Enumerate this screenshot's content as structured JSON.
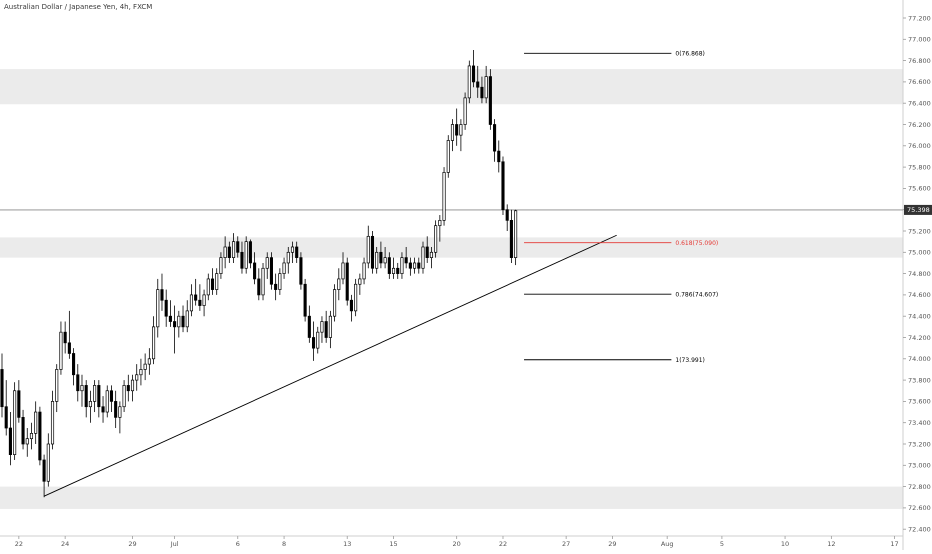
{
  "header": {
    "title": "Australian Dollar / Japanese Yen, 4h, FXCM"
  },
  "colors": {
    "candle": "#000000",
    "zone": "#ebebeb",
    "fib_line": "#000000",
    "fib_golden": "#e53935",
    "trendline": "#000000",
    "price_line": "#888888",
    "price_badge_bg": "#333333",
    "axis_text": "#555555"
  },
  "chart_data": {
    "type": "candlestick",
    "symbol": "AUDJPY",
    "interval": "4h",
    "y_ticks": [
      "72.400",
      "72.600",
      "72.800",
      "73.000",
      "73.200",
      "73.400",
      "73.600",
      "73.800",
      "74.000",
      "74.200",
      "74.400",
      "74.600",
      "74.800",
      "75.000",
      "75.200",
      "75.400",
      "75.600",
      "75.800",
      "76.000",
      "76.200",
      "76.400",
      "76.600",
      "76.800",
      "77.000",
      "77.200"
    ],
    "y_tick_values": [
      72.4,
      72.6,
      72.8,
      73.0,
      73.2,
      73.4,
      73.6,
      73.8,
      74.0,
      74.2,
      74.4,
      74.6,
      74.8,
      75.0,
      75.2,
      75.4,
      75.6,
      75.8,
      76.0,
      76.2,
      76.4,
      76.6,
      76.8,
      77.0,
      77.2
    ],
    "x_ticks": [
      {
        "label": "22",
        "bar": 4
      },
      {
        "label": "24",
        "bar": 15
      },
      {
        "label": "29",
        "bar": 31
      },
      {
        "label": "Jul",
        "bar": 41
      },
      {
        "label": "6",
        "bar": 56
      },
      {
        "label": "8",
        "bar": 67
      },
      {
        "label": "13",
        "bar": 82
      },
      {
        "label": "15",
        "bar": 93
      },
      {
        "label": "20",
        "bar": 108
      },
      {
        "label": "22",
        "bar": 119
      },
      {
        "label": "27",
        "bar": 134
      },
      {
        "label": "29",
        "bar": 145
      },
      {
        "label": "Aug",
        "bar": 158
      },
      {
        "label": "5",
        "bar": 171
      },
      {
        "label": "10",
        "bar": 186
      },
      {
        "label": "12",
        "bar": 197
      },
      {
        "label": "17",
        "bar": 212
      }
    ],
    "current_price": {
      "label": "75.398",
      "value": 75.398
    },
    "zones": [
      {
        "from": 76.39,
        "to": 76.72
      },
      {
        "from": 74.95,
        "to": 75.14
      },
      {
        "from": 72.59,
        "to": 72.8
      }
    ],
    "fib_levels": [
      {
        "label": "0(76.868)",
        "value": 76.868,
        "golden": false
      },
      {
        "label": "0.618(75.090)",
        "value": 75.09,
        "golden": true
      },
      {
        "label": "0.786(74.607)",
        "value": 74.607,
        "golden": false
      },
      {
        "label": "1(73.991)",
        "value": 73.991,
        "golden": false
      }
    ],
    "fib_start_bar": 124,
    "fib_end_bar": 159,
    "trendline": {
      "bar1": 10,
      "price1": 72.71,
      "bar2": 146,
      "price2": 75.16
    },
    "candles": [
      [
        73.9,
        74.05,
        73.45,
        73.55
      ],
      [
        73.55,
        73.8,
        73.28,
        73.35
      ],
      [
        73.35,
        73.5,
        73.0,
        73.1
      ],
      [
        73.1,
        73.78,
        73.05,
        73.7
      ],
      [
        73.7,
        73.8,
        73.4,
        73.45
      ],
      [
        73.45,
        73.52,
        73.15,
        73.2
      ],
      [
        73.2,
        73.35,
        73.08,
        73.25
      ],
      [
        73.25,
        73.4,
        73.15,
        73.3
      ],
      [
        73.3,
        73.6,
        73.2,
        73.5
      ],
      [
        73.5,
        73.55,
        73.0,
        73.05
      ],
      [
        73.05,
        73.1,
        72.7,
        72.85
      ],
      [
        72.85,
        73.3,
        72.8,
        73.2
      ],
      [
        73.2,
        73.7,
        73.15,
        73.6
      ],
      [
        73.6,
        73.95,
        73.5,
        73.9
      ],
      [
        73.9,
        74.35,
        73.85,
        74.25
      ],
      [
        74.25,
        74.35,
        74.05,
        74.15
      ],
      [
        74.15,
        74.45,
        74.0,
        74.05
      ],
      [
        74.05,
        74.1,
        73.75,
        73.85
      ],
      [
        73.85,
        73.95,
        73.6,
        73.7
      ],
      [
        73.7,
        73.85,
        73.55,
        73.75
      ],
      [
        73.75,
        73.8,
        73.45,
        73.55
      ],
      [
        73.55,
        73.7,
        73.4,
        73.6
      ],
      [
        73.6,
        73.8,
        73.5,
        73.75
      ],
      [
        73.75,
        73.8,
        73.45,
        73.55
      ],
      [
        73.55,
        73.65,
        73.4,
        73.5
      ],
      [
        73.5,
        73.75,
        73.45,
        73.7
      ],
      [
        73.7,
        73.75,
        73.5,
        73.6
      ],
      [
        73.6,
        73.7,
        73.35,
        73.45
      ],
      [
        73.45,
        73.6,
        73.3,
        73.55
      ],
      [
        73.55,
        73.8,
        73.5,
        73.75
      ],
      [
        73.75,
        73.85,
        73.6,
        73.7
      ],
      [
        73.7,
        73.85,
        73.6,
        73.8
      ],
      [
        73.8,
        73.95,
        73.7,
        73.85
      ],
      [
        73.85,
        74.0,
        73.75,
        73.9
      ],
      [
        73.9,
        74.05,
        73.8,
        73.95
      ],
      [
        73.95,
        74.1,
        73.85,
        74.0
      ],
      [
        74.0,
        74.4,
        73.95,
        74.3
      ],
      [
        74.3,
        74.75,
        74.2,
        74.65
      ],
      [
        74.65,
        74.8,
        74.45,
        74.55
      ],
      [
        74.55,
        74.65,
        74.3,
        74.4
      ],
      [
        74.4,
        74.55,
        74.3,
        74.35
      ],
      [
        74.35,
        74.5,
        74.05,
        74.3
      ],
      [
        74.3,
        74.45,
        74.2,
        74.4
      ],
      [
        74.4,
        74.5,
        74.25,
        74.3
      ],
      [
        74.3,
        74.55,
        74.25,
        74.45
      ],
      [
        74.45,
        74.7,
        74.4,
        74.6
      ],
      [
        74.6,
        74.75,
        74.5,
        74.55
      ],
      [
        74.55,
        74.7,
        74.45,
        74.5
      ],
      [
        74.5,
        74.65,
        74.4,
        74.6
      ],
      [
        74.6,
        74.8,
        74.55,
        74.75
      ],
      [
        74.75,
        74.85,
        74.6,
        74.65
      ],
      [
        74.65,
        74.85,
        74.6,
        74.8
      ],
      [
        74.8,
        75.0,
        74.75,
        74.95
      ],
      [
        74.95,
        75.15,
        74.85,
        75.05
      ],
      [
        75.05,
        75.1,
        74.9,
        74.95
      ],
      [
        74.95,
        75.18,
        74.9,
        75.1
      ],
      [
        75.1,
        75.15,
        74.95,
        75.0
      ],
      [
        75.0,
        75.1,
        74.8,
        74.85
      ],
      [
        74.85,
        75.15,
        74.8,
        75.1
      ],
      [
        75.1,
        75.12,
        74.85,
        74.9
      ],
      [
        74.9,
        75.0,
        74.7,
        74.75
      ],
      [
        74.75,
        74.85,
        74.55,
        74.6
      ],
      [
        74.6,
        74.9,
        74.55,
        74.85
      ],
      [
        74.85,
        75.0,
        74.75,
        74.95
      ],
      [
        74.95,
        75.0,
        74.65,
        74.7
      ],
      [
        74.7,
        74.8,
        74.55,
        74.65
      ],
      [
        74.65,
        74.85,
        74.6,
        74.8
      ],
      [
        74.8,
        74.95,
        74.75,
        74.9
      ],
      [
        74.9,
        75.05,
        74.8,
        75.0
      ],
      [
        75.0,
        75.1,
        74.9,
        75.05
      ],
      [
        75.05,
        75.1,
        74.9,
        74.95
      ],
      [
        74.95,
        75.0,
        74.65,
        74.7
      ],
      [
        74.7,
        74.75,
        74.35,
        74.4
      ],
      [
        74.4,
        74.5,
        74.15,
        74.2
      ],
      [
        74.2,
        74.35,
        73.98,
        74.1
      ],
      [
        74.1,
        74.3,
        74.05,
        74.25
      ],
      [
        74.25,
        74.4,
        74.15,
        74.35
      ],
      [
        74.35,
        74.45,
        74.15,
        74.2
      ],
      [
        74.2,
        74.45,
        74.1,
        74.4
      ],
      [
        74.4,
        74.7,
        74.35,
        74.65
      ],
      [
        74.65,
        74.85,
        74.55,
        74.75
      ],
      [
        74.75,
        75.0,
        74.7,
        74.9
      ],
      [
        74.9,
        74.95,
        74.5,
        74.55
      ],
      [
        74.55,
        74.6,
        74.35,
        74.45
      ],
      [
        74.45,
        74.75,
        74.4,
        74.7
      ],
      [
        74.7,
        74.8,
        74.6,
        74.75
      ],
      [
        74.75,
        74.95,
        74.7,
        74.9
      ],
      [
        74.9,
        75.25,
        74.85,
        75.15
      ],
      [
        75.15,
        75.2,
        74.8,
        74.85
      ],
      [
        74.85,
        75.05,
        74.8,
        75.0
      ],
      [
        75.0,
        75.1,
        74.85,
        74.9
      ],
      [
        74.9,
        75.05,
        74.85,
        74.95
      ],
      [
        74.95,
        75.0,
        74.75,
        74.8
      ],
      [
        74.8,
        74.95,
        74.75,
        74.85
      ],
      [
        74.85,
        74.9,
        74.75,
        74.8
      ],
      [
        74.8,
        75.0,
        74.75,
        74.95
      ],
      [
        74.95,
        75.05,
        74.85,
        74.9
      ],
      [
        74.9,
        74.95,
        74.78,
        74.85
      ],
      [
        74.85,
        74.95,
        74.8,
        74.9
      ],
      [
        74.9,
        74.95,
        74.8,
        74.85
      ],
      [
        74.85,
        75.1,
        74.8,
        75.05
      ],
      [
        75.05,
        75.15,
        74.9,
        74.95
      ],
      [
        74.95,
        75.05,
        74.85,
        75.0
      ],
      [
        75.0,
        75.3,
        74.95,
        75.25
      ],
      [
        75.25,
        75.35,
        75.1,
        75.3
      ],
      [
        75.3,
        75.8,
        75.25,
        75.75
      ],
      [
        75.75,
        76.1,
        75.7,
        76.05
      ],
      [
        76.05,
        76.25,
        75.95,
        76.2
      ],
      [
        76.2,
        76.35,
        76.0,
        76.1
      ],
      [
        76.1,
        76.25,
        75.95,
        76.2
      ],
      [
        76.2,
        76.5,
        76.15,
        76.45
      ],
      [
        76.45,
        76.8,
        76.4,
        76.75
      ],
      [
        76.75,
        76.9,
        76.55,
        76.6
      ],
      [
        76.6,
        76.75,
        76.45,
        76.55
      ],
      [
        76.55,
        76.65,
        76.4,
        76.45
      ],
      [
        76.45,
        76.75,
        76.4,
        76.65
      ],
      [
        76.65,
        76.72,
        76.15,
        76.2
      ],
      [
        76.2,
        76.25,
        75.85,
        75.95
      ],
      [
        75.95,
        76.05,
        75.75,
        75.85
      ],
      [
        75.85,
        75.9,
        75.35,
        75.4
      ],
      [
        75.4,
        75.45,
        75.2,
        75.3
      ],
      [
        75.3,
        75.4,
        74.9,
        74.95
      ],
      [
        74.95,
        75.4,
        74.88,
        75.39
      ]
    ]
  }
}
